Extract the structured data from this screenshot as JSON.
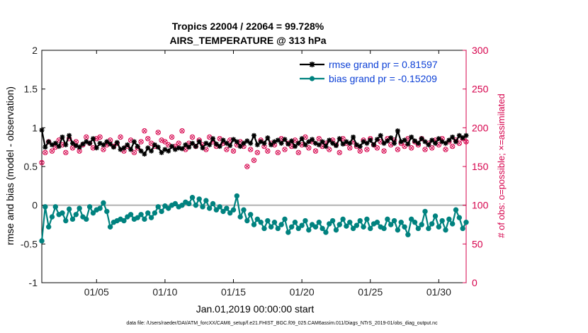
{
  "chart_data": {
    "type": "line",
    "title": "Tropics 22004 / 22064 = 99.728%",
    "subtitle": "AIRS_TEMPERATURE @ 313 hPa",
    "xlabel": "Jan.01,2019 00:00:00 start",
    "ylabel": "rmse and bias (model - observation)",
    "ylabel_right": "# of obs: o=possible; ×=assimilated",
    "footnote": "data file: /Users/raeder/DAI/ATM_forcXX/CAM6_setup/f.e21.FHIST_BGC.f09_025.CAM6assim.011/Diags_NTrS_2019-01/obs_diag_output.nc",
    "xlim": [
      1.0,
      32.0
    ],
    "ylim": [
      -1,
      2
    ],
    "ylim_right": [
      0,
      300
    ],
    "x_ticks": [
      5,
      10,
      15,
      20,
      25,
      30
    ],
    "x_tick_labels": [
      "01/05",
      "01/10",
      "01/15",
      "01/20",
      "01/25",
      "01/30"
    ],
    "y_ticks": [
      -1,
      -0.5,
      0,
      0.5,
      1,
      1.5,
      2
    ],
    "y_tick_labels": [
      "-1",
      "-0.5",
      "0",
      "0.5",
      "1",
      "1.5",
      "2"
    ],
    "y_ticks_right": [
      0,
      50,
      100,
      150,
      200,
      250,
      300
    ],
    "y_tick_labels_right": [
      "0",
      "50",
      "100",
      "150",
      "200",
      "250",
      "300"
    ],
    "legend": [
      "rmse grand pr = 0.81597",
      "bias grand pr = -0.15209"
    ],
    "legend_position": "top-right",
    "colors": {
      "rmse": "#000000",
      "bias": "#00827f",
      "obs": "#d6004b",
      "zero_line": "#b0b0b0",
      "legend_text": "#0b3fd6"
    },
    "series": [
      {
        "name": "rmse",
        "x": [
          1.0,
          1.25,
          1.5,
          1.75,
          2.0,
          2.25,
          2.5,
          2.75,
          3.0,
          3.25,
          3.5,
          3.75,
          4.0,
          4.25,
          4.5,
          4.75,
          5.0,
          5.25,
          5.5,
          5.75,
          6.0,
          6.25,
          6.5,
          6.75,
          7.0,
          7.25,
          7.5,
          7.75,
          8.0,
          8.25,
          8.5,
          8.75,
          9.0,
          9.25,
          9.5,
          9.75,
          10.0,
          10.25,
          10.5,
          10.75,
          11.0,
          11.25,
          11.5,
          11.75,
          12.0,
          12.25,
          12.5,
          12.75,
          13.0,
          13.25,
          13.5,
          13.75,
          14.0,
          14.25,
          14.5,
          14.75,
          15.0,
          15.25,
          15.5,
          15.75,
          16.0,
          16.25,
          16.5,
          16.75,
          17.0,
          17.25,
          17.5,
          17.75,
          18.0,
          18.25,
          18.5,
          18.75,
          19.0,
          19.25,
          19.5,
          19.75,
          20.0,
          20.25,
          20.5,
          20.75,
          21.0,
          21.25,
          21.5,
          21.75,
          22.0,
          22.25,
          22.5,
          22.75,
          23.0,
          23.25,
          23.5,
          23.75,
          24.0,
          24.25,
          24.5,
          24.75,
          25.0,
          25.25,
          25.5,
          25.75,
          26.0,
          26.25,
          26.5,
          26.75,
          27.0,
          27.25,
          27.5,
          27.75,
          28.0,
          28.25,
          28.5,
          28.75,
          29.0,
          29.25,
          29.5,
          29.75,
          30.0,
          30.25,
          30.5,
          30.75,
          31.0,
          31.25,
          31.5,
          31.75,
          32.0
        ],
        "values": [
          0.97,
          0.75,
          0.82,
          0.78,
          0.8,
          0.76,
          0.88,
          0.78,
          0.9,
          0.8,
          0.77,
          0.75,
          0.79,
          0.82,
          0.8,
          0.86,
          0.74,
          0.8,
          0.78,
          0.82,
          0.79,
          0.75,
          0.81,
          0.72,
          0.74,
          0.78,
          0.72,
          0.82,
          0.76,
          0.7,
          0.66,
          0.74,
          0.7,
          0.78,
          0.75,
          0.68,
          0.72,
          0.7,
          0.76,
          0.72,
          0.74,
          0.73,
          0.78,
          0.75,
          0.8,
          0.76,
          0.82,
          0.74,
          0.8,
          0.78,
          0.86,
          0.79,
          0.76,
          0.84,
          0.8,
          0.77,
          0.85,
          0.82,
          0.76,
          0.8,
          0.83,
          0.8,
          0.9,
          0.78,
          0.82,
          0.8,
          0.87,
          0.78,
          0.82,
          0.84,
          0.8,
          0.85,
          0.79,
          0.83,
          0.76,
          0.8,
          0.86,
          0.78,
          0.82,
          0.85,
          0.8,
          0.78,
          0.82,
          0.76,
          0.84,
          0.8,
          0.77,
          0.86,
          0.79,
          0.82,
          0.8,
          0.88,
          0.78,
          0.76,
          0.82,
          0.8,
          0.84,
          0.78,
          0.85,
          0.9,
          0.8,
          0.83,
          0.87,
          0.8,
          0.96,
          0.82,
          0.84,
          0.79,
          0.88,
          0.83,
          0.8,
          0.86,
          0.82,
          0.78,
          0.84,
          0.8,
          0.86,
          0.82,
          0.8,
          0.84,
          0.88,
          0.82,
          0.9,
          0.87,
          0.9
        ]
      },
      {
        "name": "bias",
        "x": [
          1.0,
          1.25,
          1.5,
          1.75,
          2.0,
          2.25,
          2.5,
          2.75,
          3.0,
          3.25,
          3.5,
          3.75,
          4.0,
          4.25,
          4.5,
          4.75,
          5.0,
          5.25,
          5.5,
          5.75,
          6.0,
          6.25,
          6.5,
          6.75,
          7.0,
          7.25,
          7.5,
          7.75,
          8.0,
          8.25,
          8.5,
          8.75,
          9.0,
          9.25,
          9.5,
          9.75,
          10.0,
          10.25,
          10.5,
          10.75,
          11.0,
          11.25,
          11.5,
          11.75,
          12.0,
          12.25,
          12.5,
          12.75,
          13.0,
          13.25,
          13.5,
          13.75,
          14.0,
          14.25,
          14.5,
          14.75,
          15.0,
          15.25,
          15.5,
          15.75,
          16.0,
          16.25,
          16.5,
          16.75,
          17.0,
          17.25,
          17.5,
          17.75,
          18.0,
          18.25,
          18.5,
          18.75,
          19.0,
          19.25,
          19.5,
          19.75,
          20.0,
          20.25,
          20.5,
          20.75,
          21.0,
          21.25,
          21.5,
          21.75,
          22.0,
          22.25,
          22.5,
          22.75,
          23.0,
          23.25,
          23.5,
          23.75,
          24.0,
          24.25,
          24.5,
          24.75,
          25.0,
          25.25,
          25.5,
          25.75,
          26.0,
          26.25,
          26.5,
          26.75,
          27.0,
          27.25,
          27.5,
          27.75,
          28.0,
          28.25,
          28.5,
          28.75,
          29.0,
          29.25,
          29.5,
          29.75,
          30.0,
          30.25,
          30.5,
          30.75,
          31.0,
          31.25,
          31.5,
          31.75,
          32.0
        ],
        "values": [
          -0.46,
          -0.02,
          -0.28,
          -0.15,
          -0.02,
          -0.12,
          -0.1,
          -0.2,
          -0.05,
          -0.18,
          -0.12,
          -0.04,
          -0.15,
          -0.18,
          -0.02,
          -0.1,
          -0.06,
          -0.04,
          0.03,
          -0.08,
          -0.28,
          -0.22,
          -0.2,
          -0.18,
          -0.2,
          -0.15,
          -0.12,
          -0.18,
          -0.16,
          -0.12,
          -0.18,
          -0.1,
          -0.16,
          -0.1,
          -0.02,
          -0.08,
          -0.01,
          -0.04,
          0.0,
          0.02,
          -0.02,
          0.0,
          0.04,
          0.02,
          0.1,
          0.0,
          0.08,
          -0.02,
          0.06,
          -0.04,
          0.02,
          -0.06,
          -0.02,
          -0.08,
          -0.04,
          -0.1,
          -0.06,
          0.12,
          -0.15,
          -0.06,
          -0.2,
          -0.12,
          -0.25,
          -0.18,
          -0.22,
          -0.3,
          -0.2,
          -0.28,
          -0.22,
          -0.3,
          -0.25,
          -0.18,
          -0.35,
          -0.28,
          -0.22,
          -0.3,
          -0.26,
          -0.2,
          -0.32,
          -0.25,
          -0.28,
          -0.22,
          -0.3,
          -0.35,
          -0.24,
          -0.2,
          -0.32,
          -0.25,
          -0.18,
          -0.27,
          -0.22,
          -0.3,
          -0.26,
          -0.2,
          -0.28,
          -0.18,
          -0.3,
          -0.24,
          -0.22,
          -0.28,
          -0.3,
          -0.18,
          -0.25,
          -0.2,
          -0.32,
          -0.22,
          -0.28,
          -0.38,
          -0.18,
          -0.22,
          -0.3,
          -0.25,
          -0.08,
          -0.3,
          -0.24,
          -0.14,
          -0.28,
          -0.2,
          -0.32,
          -0.18,
          -0.24,
          -0.06,
          -0.16,
          -0.3,
          -0.22
        ]
      },
      {
        "name": "obs_possible",
        "x": [
          1.0,
          1.25,
          1.5,
          1.75,
          2.0,
          2.25,
          2.5,
          2.75,
          3.0,
          3.25,
          3.5,
          3.75,
          4.0,
          4.25,
          4.5,
          4.75,
          5.0,
          5.25,
          5.5,
          5.75,
          6.0,
          6.25,
          6.5,
          6.75,
          7.0,
          7.25,
          7.5,
          7.75,
          8.0,
          8.25,
          8.5,
          8.75,
          9.0,
          9.25,
          9.5,
          9.75,
          10.0,
          10.25,
          10.5,
          10.75,
          11.0,
          11.25,
          11.5,
          11.75,
          12.0,
          12.25,
          12.5,
          12.75,
          13.0,
          13.25,
          13.5,
          13.75,
          14.0,
          14.25,
          14.5,
          14.75,
          15.0,
          15.25,
          15.5,
          15.75,
          16.0,
          16.25,
          16.5,
          16.75,
          17.0,
          17.25,
          17.5,
          17.75,
          18.0,
          18.25,
          18.5,
          18.75,
          19.0,
          19.25,
          19.5,
          19.75,
          20.0,
          20.25,
          20.5,
          20.75,
          21.0,
          21.25,
          21.5,
          21.75,
          22.0,
          22.25,
          22.5,
          22.75,
          23.0,
          23.25,
          23.5,
          23.75,
          24.0,
          24.25,
          24.5,
          24.75,
          25.0,
          25.25,
          25.5,
          25.75,
          26.0,
          26.25,
          26.5,
          26.75,
          27.0,
          27.25,
          27.5,
          27.75,
          28.0,
          28.25,
          28.5,
          28.75,
          29.0,
          29.25,
          29.5,
          29.75,
          30.0,
          30.25,
          30.5,
          30.75,
          31.0,
          31.25,
          31.5,
          31.75,
          32.0
        ],
        "values": [
          155,
          168,
          182,
          170,
          175,
          184,
          178,
          168,
          186,
          174,
          182,
          170,
          178,
          188,
          180,
          174,
          186,
          188,
          172,
          178,
          184,
          176,
          180,
          188,
          170,
          176,
          184,
          168,
          174,
          182,
          196,
          186,
          180,
          176,
          194,
          184,
          182,
          178,
          188,
          176,
          180,
          196,
          172,
          180,
          188,
          176,
          184,
          178,
          172,
          188,
          182,
          176,
          186,
          180,
          172,
          184,
          170,
          178,
          182,
          176,
          150,
          172,
          158,
          168,
          184,
          176,
          170,
          180,
          178,
          168,
          186,
          172,
          180,
          176,
          184,
          168,
          178,
          188,
          174,
          182,
          170,
          186,
          176,
          180,
          172,
          184,
          178,
          168,
          186,
          180,
          174,
          182,
          176,
          170,
          184,
          172,
          186,
          178,
          174,
          182,
          170,
          186,
          178,
          184,
          172,
          180,
          176,
          186,
          174,
          182,
          178,
          186,
          172,
          180,
          174,
          184,
          178,
          186,
          172,
          182,
          176,
          184,
          180,
          186,
          182
        ]
      }
    ]
  }
}
